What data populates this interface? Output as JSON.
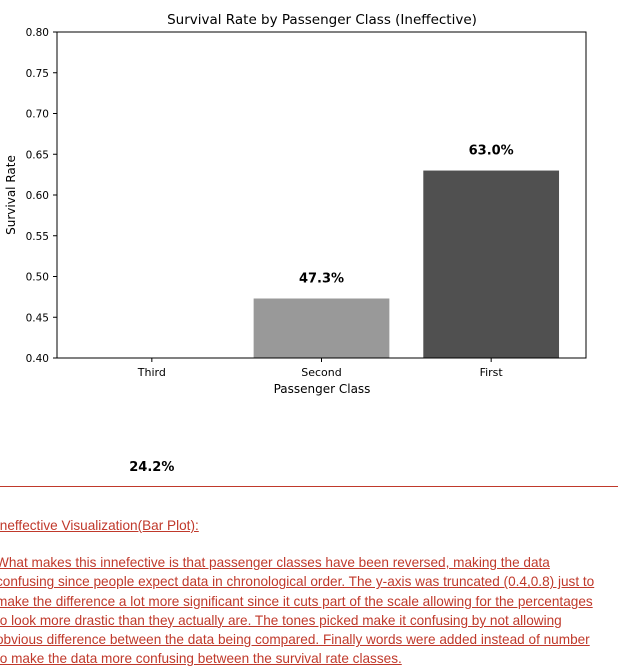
{
  "chart_data": {
    "type": "bar",
    "title": "Survival Rate by Passenger Class (Ineffective)",
    "xlabel": "Passenger Class",
    "ylabel": "Survival Rate",
    "categories": [
      "Third",
      "Second",
      "First"
    ],
    "values": [
      0.242,
      0.473,
      0.63
    ],
    "value_labels": [
      "24.2%",
      "47.3%",
      "63.0%"
    ],
    "colors": [
      "#d0d0d0",
      "#999999",
      "#505050"
    ],
    "ylim": [
      0.4,
      0.8
    ],
    "yticks": [
      "0.40",
      "0.45",
      "0.50",
      "0.55",
      "0.60",
      "0.65",
      "0.70",
      "0.75",
      "0.80"
    ],
    "grid": false
  },
  "document": {
    "heading": "Ineffective Visualization(Bar Plot):",
    "lines": [
      "What makes this innefective is that passenger classes have been reversed, making the data",
      "confusing since people expect data in chronological order. The y-axis was truncated (0.4,0.8) just to",
      "make the difference a lot more significant since it cuts part of the scale allowing for the percentages",
      "to look more drastic than they actually are. The tones picked make it confusing by not allowing",
      "obvious difference between the data being compared. Finally words were added instead of number",
      "to make the data more confusing between the survival rate classes."
    ],
    "accent_color": "#c0392b"
  }
}
